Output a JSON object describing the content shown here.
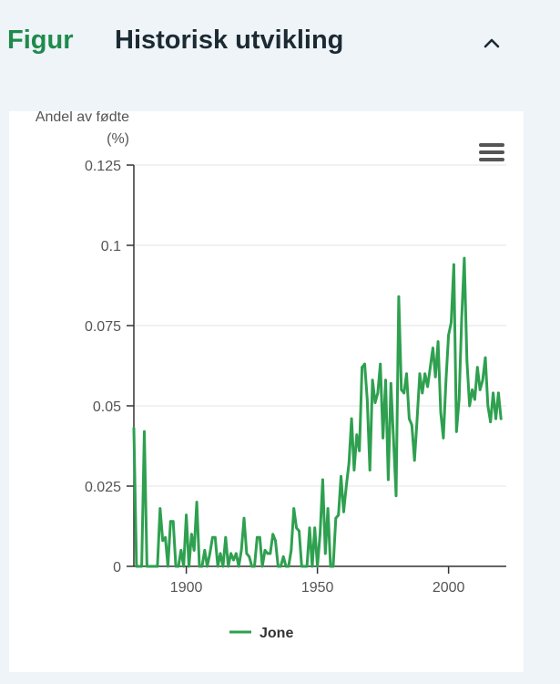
{
  "header": {
    "figure_label": "Figur",
    "title": "Historisk utvikling"
  },
  "colors": {
    "accent": "#1f8a4c",
    "series": "#2ea04f"
  },
  "icons": {
    "collapse": "chevron-up-icon",
    "menu": "hamburger-menu-icon"
  },
  "chart_data": {
    "type": "line",
    "ylabel": "Andel av fødte (%)",
    "ylabel_lines": [
      "Andel av fødte",
      "(%)"
    ],
    "xlabel": "",
    "xlim": [
      1880,
      2022
    ],
    "ylim": [
      0,
      0.125
    ],
    "x_ticks": [
      1900,
      1950,
      2000
    ],
    "y_ticks": [
      "0",
      "0.025",
      "0.05",
      "0.075",
      "0.1",
      "0.125"
    ],
    "legend_position": "bottom-center",
    "grid": true,
    "series": [
      {
        "name": "Jone",
        "points": [
          [
            1880,
            0.043
          ],
          [
            1881,
            0
          ],
          [
            1882,
            0
          ],
          [
            1883,
            0
          ],
          [
            1884,
            0.042
          ],
          [
            1885,
            0
          ],
          [
            1886,
            0
          ],
          [
            1887,
            0
          ],
          [
            1888,
            0
          ],
          [
            1889,
            0
          ],
          [
            1890,
            0.018
          ],
          [
            1891,
            0.008
          ],
          [
            1892,
            0.009
          ],
          [
            1893,
            0
          ],
          [
            1894,
            0.014
          ],
          [
            1895,
            0.014
          ],
          [
            1896,
            0
          ],
          [
            1897,
            0
          ],
          [
            1898,
            0.005
          ],
          [
            1899,
            0
          ],
          [
            1900,
            0.016
          ],
          [
            1901,
            0
          ],
          [
            1902,
            0.01
          ],
          [
            1903,
            0.005
          ],
          [
            1904,
            0.02
          ],
          [
            1905,
            0
          ],
          [
            1906,
            0
          ],
          [
            1907,
            0.005
          ],
          [
            1908,
            0
          ],
          [
            1909,
            0.004
          ],
          [
            1910,
            0.009
          ],
          [
            1911,
            0.009
          ],
          [
            1912,
            0
          ],
          [
            1913,
            0.004
          ],
          [
            1914,
            0
          ],
          [
            1915,
            0.009
          ],
          [
            1916,
            0
          ],
          [
            1917,
            0.004
          ],
          [
            1918,
            0.002
          ],
          [
            1919,
            0.004
          ],
          [
            1920,
            0
          ],
          [
            1921,
            0.005
          ],
          [
            1922,
            0.015
          ],
          [
            1923,
            0.004
          ],
          [
            1924,
            0.003
          ],
          [
            1925,
            0
          ],
          [
            1926,
            0
          ],
          [
            1927,
            0.009
          ],
          [
            1928,
            0.009
          ],
          [
            1929,
            0
          ],
          [
            1930,
            0.005
          ],
          [
            1931,
            0.004
          ],
          [
            1932,
            0.004
          ],
          [
            1933,
            0.01
          ],
          [
            1934,
            0.008
          ],
          [
            1935,
            0
          ],
          [
            1936,
            0
          ],
          [
            1937,
            0.003
          ],
          [
            1938,
            0
          ],
          [
            1939,
            0
          ],
          [
            1940,
            0.005
          ],
          [
            1941,
            0.018
          ],
          [
            1942,
            0.012
          ],
          [
            1943,
            0.011
          ],
          [
            1944,
            0
          ],
          [
            1945,
            0
          ],
          [
            1946,
            0
          ],
          [
            1947,
            0.012
          ],
          [
            1948,
            0
          ],
          [
            1949,
            0.012
          ],
          [
            1950,
            0
          ],
          [
            1951,
            0.01
          ],
          [
            1952,
            0.027
          ],
          [
            1953,
            0.004
          ],
          [
            1954,
            0.018
          ],
          [
            1955,
            0
          ],
          [
            1956,
            0
          ],
          [
            1957,
            0.015
          ],
          [
            1958,
            0.016
          ],
          [
            1959,
            0.028
          ],
          [
            1960,
            0.017
          ],
          [
            1961,
            0.025
          ],
          [
            1962,
            0.032
          ],
          [
            1963,
            0.046
          ],
          [
            1964,
            0.03
          ],
          [
            1965,
            0.041
          ],
          [
            1966,
            0.036
          ],
          [
            1967,
            0.062
          ],
          [
            1968,
            0.063
          ],
          [
            1969,
            0.052
          ],
          [
            1970,
            0.03
          ],
          [
            1971,
            0.058
          ],
          [
            1972,
            0.051
          ],
          [
            1973,
            0.054
          ],
          [
            1974,
            0.063
          ],
          [
            1975,
            0.04
          ],
          [
            1976,
            0.058
          ],
          [
            1977,
            0.027
          ],
          [
            1978,
            0.057
          ],
          [
            1979,
            0.04
          ],
          [
            1980,
            0.022
          ],
          [
            1981,
            0.084
          ],
          [
            1982,
            0.055
          ],
          [
            1983,
            0.054
          ],
          [
            1984,
            0.06
          ],
          [
            1985,
            0.046
          ],
          [
            1986,
            0.044
          ],
          [
            1987,
            0.033
          ],
          [
            1988,
            0.046
          ],
          [
            1989,
            0.06
          ],
          [
            1990,
            0.054
          ],
          [
            1991,
            0.06
          ],
          [
            1992,
            0.056
          ],
          [
            1993,
            0.062
          ],
          [
            1994,
            0.068
          ],
          [
            1995,
            0.059
          ],
          [
            1996,
            0.07
          ],
          [
            1997,
            0.048
          ],
          [
            1998,
            0.04
          ],
          [
            1999,
            0.058
          ],
          [
            2000,
            0.072
          ],
          [
            2001,
            0.076
          ],
          [
            2002,
            0.094
          ],
          [
            2003,
            0.042
          ],
          [
            2004,
            0.052
          ],
          [
            2005,
            0.077
          ],
          [
            2006,
            0.096
          ],
          [
            2007,
            0.064
          ],
          [
            2008,
            0.05
          ],
          [
            2009,
            0.055
          ],
          [
            2010,
            0.052
          ],
          [
            2011,
            0.062
          ],
          [
            2012,
            0.055
          ],
          [
            2013,
            0.058
          ],
          [
            2014,
            0.065
          ],
          [
            2015,
            0.05
          ],
          [
            2016,
            0.045
          ],
          [
            2017,
            0.054
          ],
          [
            2018,
            0.046
          ],
          [
            2019,
            0.054
          ],
          [
            2020,
            0.046
          ]
        ]
      }
    ]
  }
}
